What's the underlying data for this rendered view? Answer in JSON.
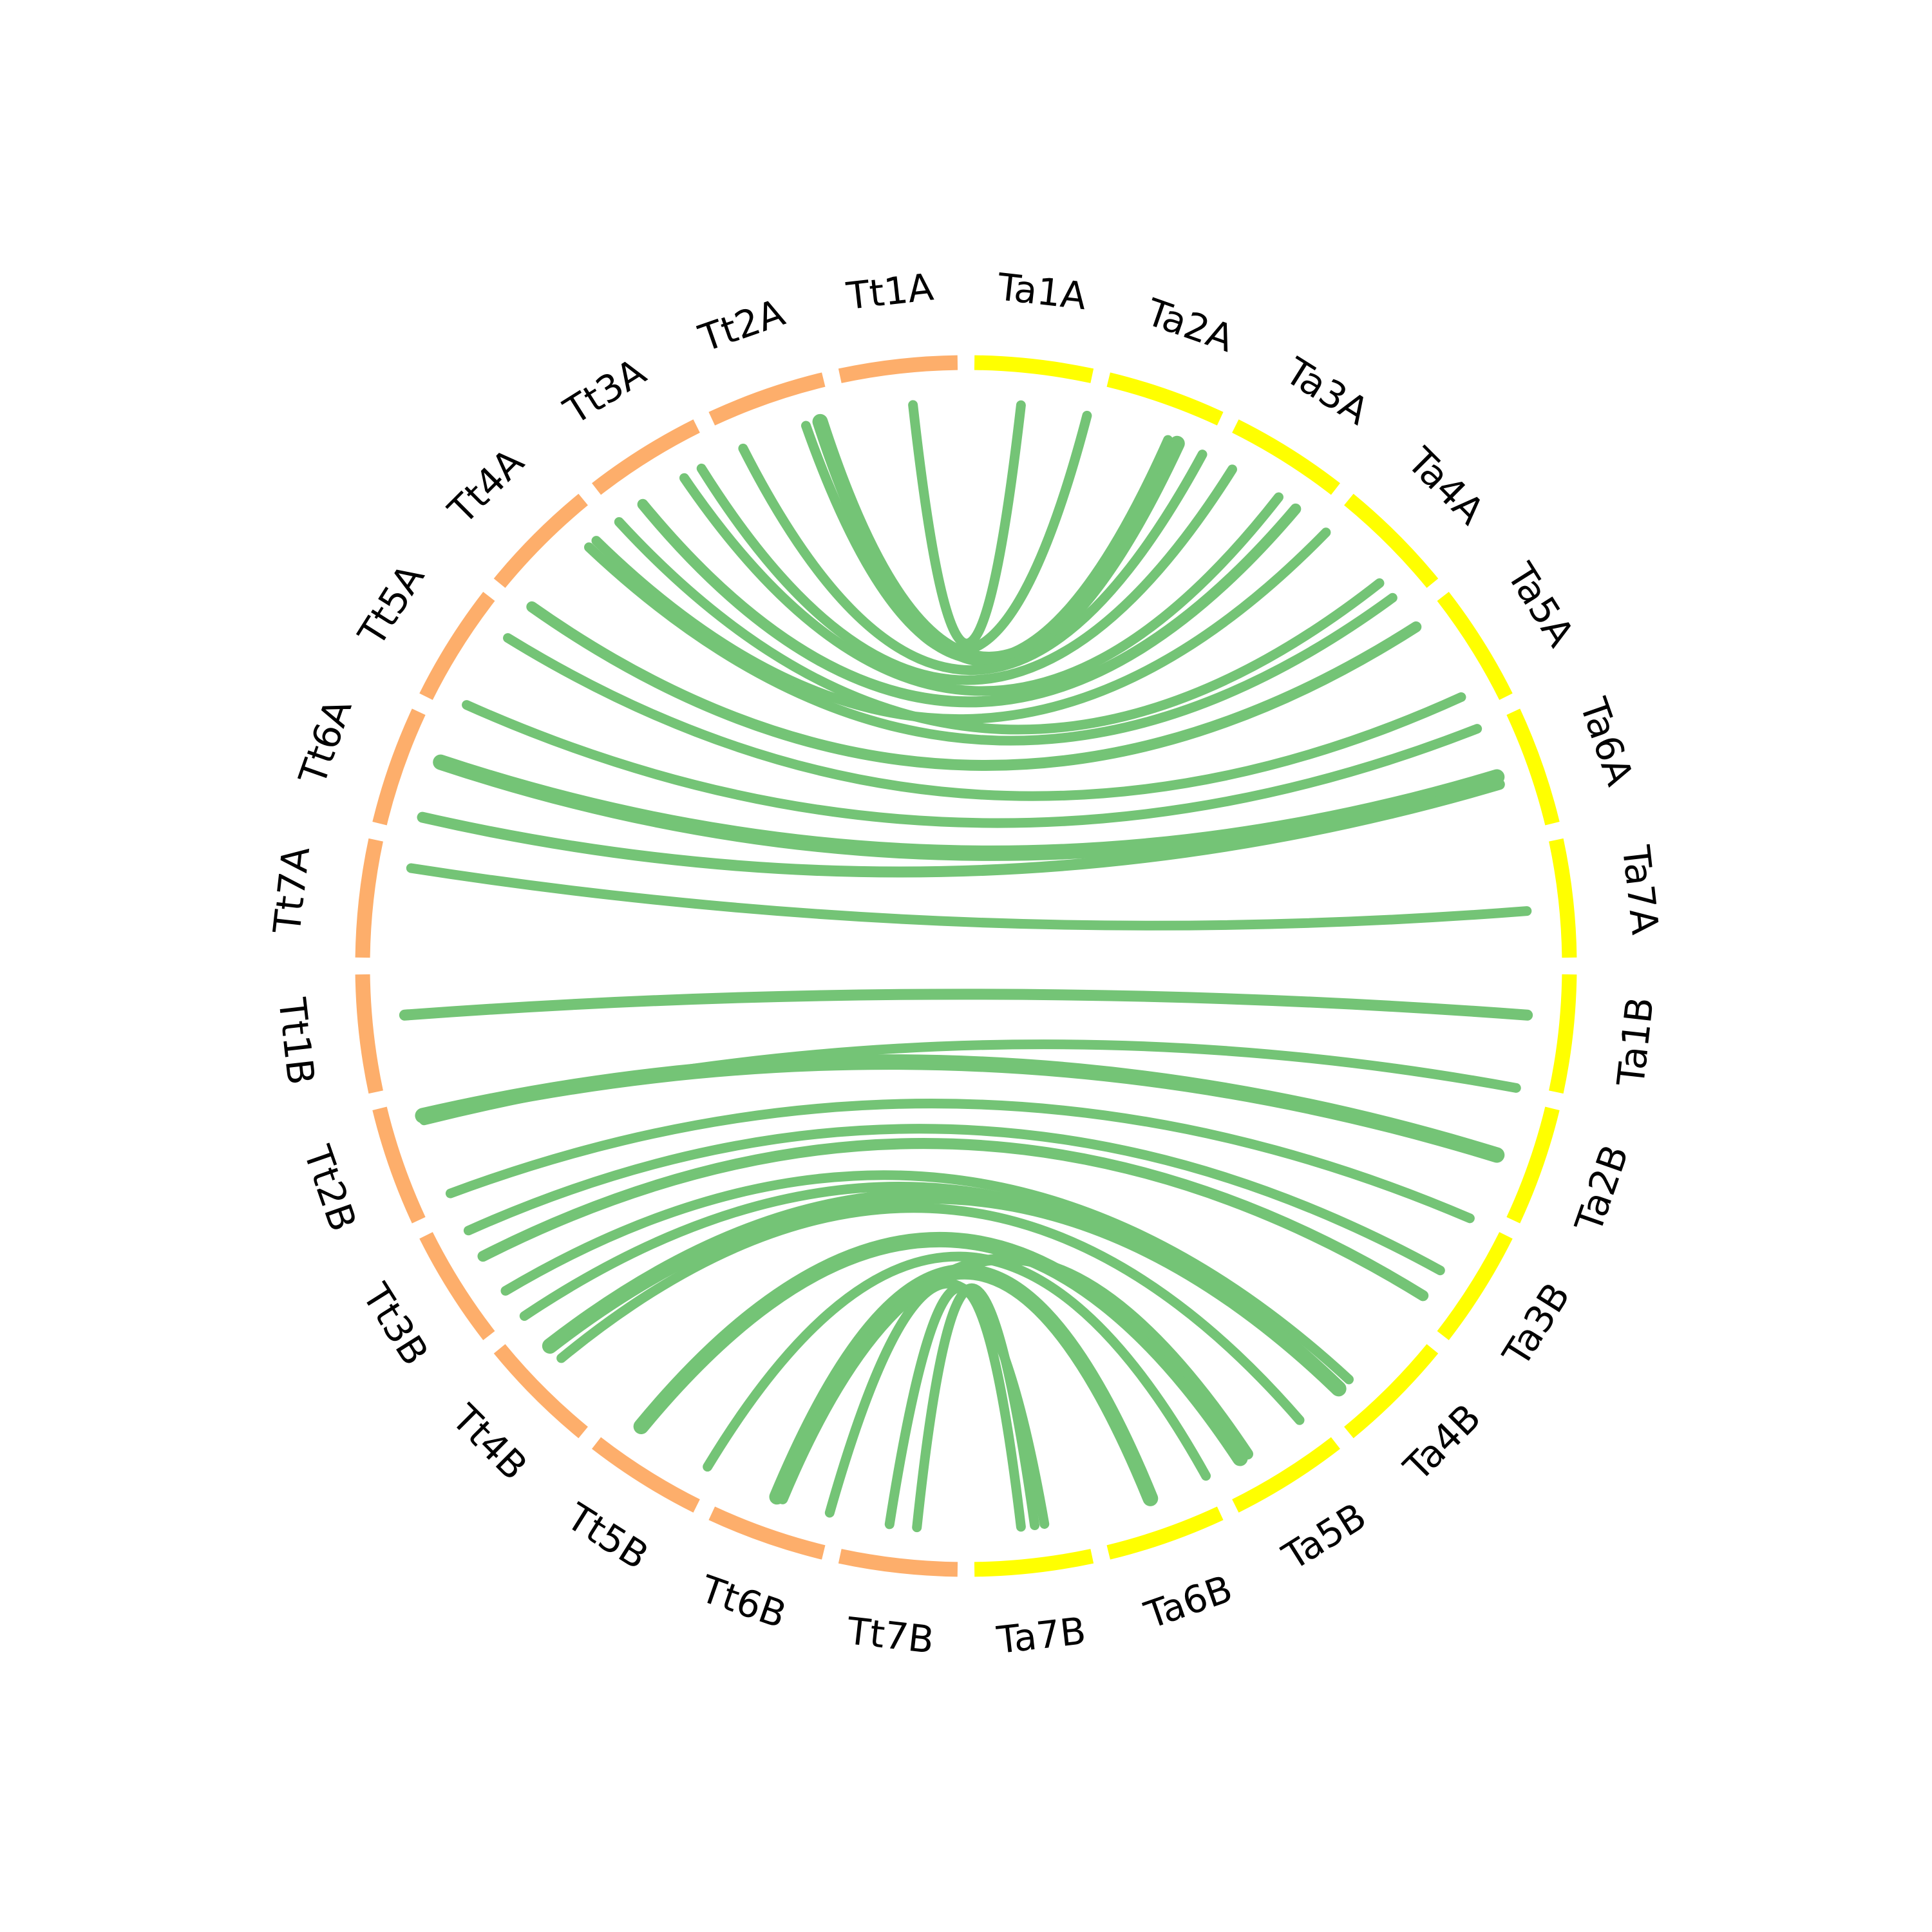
{
  "nodes": [
    {
      "label": "Ta1A",
      "color": "#ffff00"
    },
    {
      "label": "Ta2A",
      "color": "#ffff00"
    },
    {
      "label": "Ta3A",
      "color": "#ffff00"
    },
    {
      "label": "Ta4A",
      "color": "#ffff00"
    },
    {
      "label": "Ta5A",
      "color": "#ffff00"
    },
    {
      "label": "Ta6A",
      "color": "#ffff00"
    },
    {
      "label": "Ta7A",
      "color": "#ffff00"
    },
    {
      "label": "Ta1B",
      "color": "#ffff00"
    },
    {
      "label": "Ta2B",
      "color": "#ffff00"
    },
    {
      "label": "Ta3B",
      "color": "#ffff00"
    },
    {
      "label": "Ta4B",
      "color": "#ffff00"
    },
    {
      "label": "Ta5B",
      "color": "#ffff00"
    },
    {
      "label": "Ta6B",
      "color": "#ffff00"
    },
    {
      "label": "Ta7B",
      "color": "#ffff00"
    },
    {
      "label": "Tt7B",
      "color": "#fdae6b"
    },
    {
      "label": "Tt6B",
      "color": "#fdae6b"
    },
    {
      "label": "Tt5B",
      "color": "#fdae6b"
    },
    {
      "label": "Tt4B",
      "color": "#fdae6b"
    },
    {
      "label": "Tt3B",
      "color": "#fdae6b"
    },
    {
      "label": "Tt2B",
      "color": "#fdae6b"
    },
    {
      "label": "Tt1B",
      "color": "#fdae6b"
    },
    {
      "label": "Tt7A",
      "color": "#fdae6b"
    },
    {
      "label": "Tt6A",
      "color": "#fdae6b"
    },
    {
      "label": "Tt5A",
      "color": "#fdae6b"
    },
    {
      "label": "Tt4A",
      "color": "#fdae6b"
    },
    {
      "label": "Tt3A",
      "color": "#fdae6b"
    },
    {
      "label": "Tt2A",
      "color": "#fdae6b"
    },
    {
      "label": "Tt1A",
      "color": "#fdae6b"
    }
  ]
}
